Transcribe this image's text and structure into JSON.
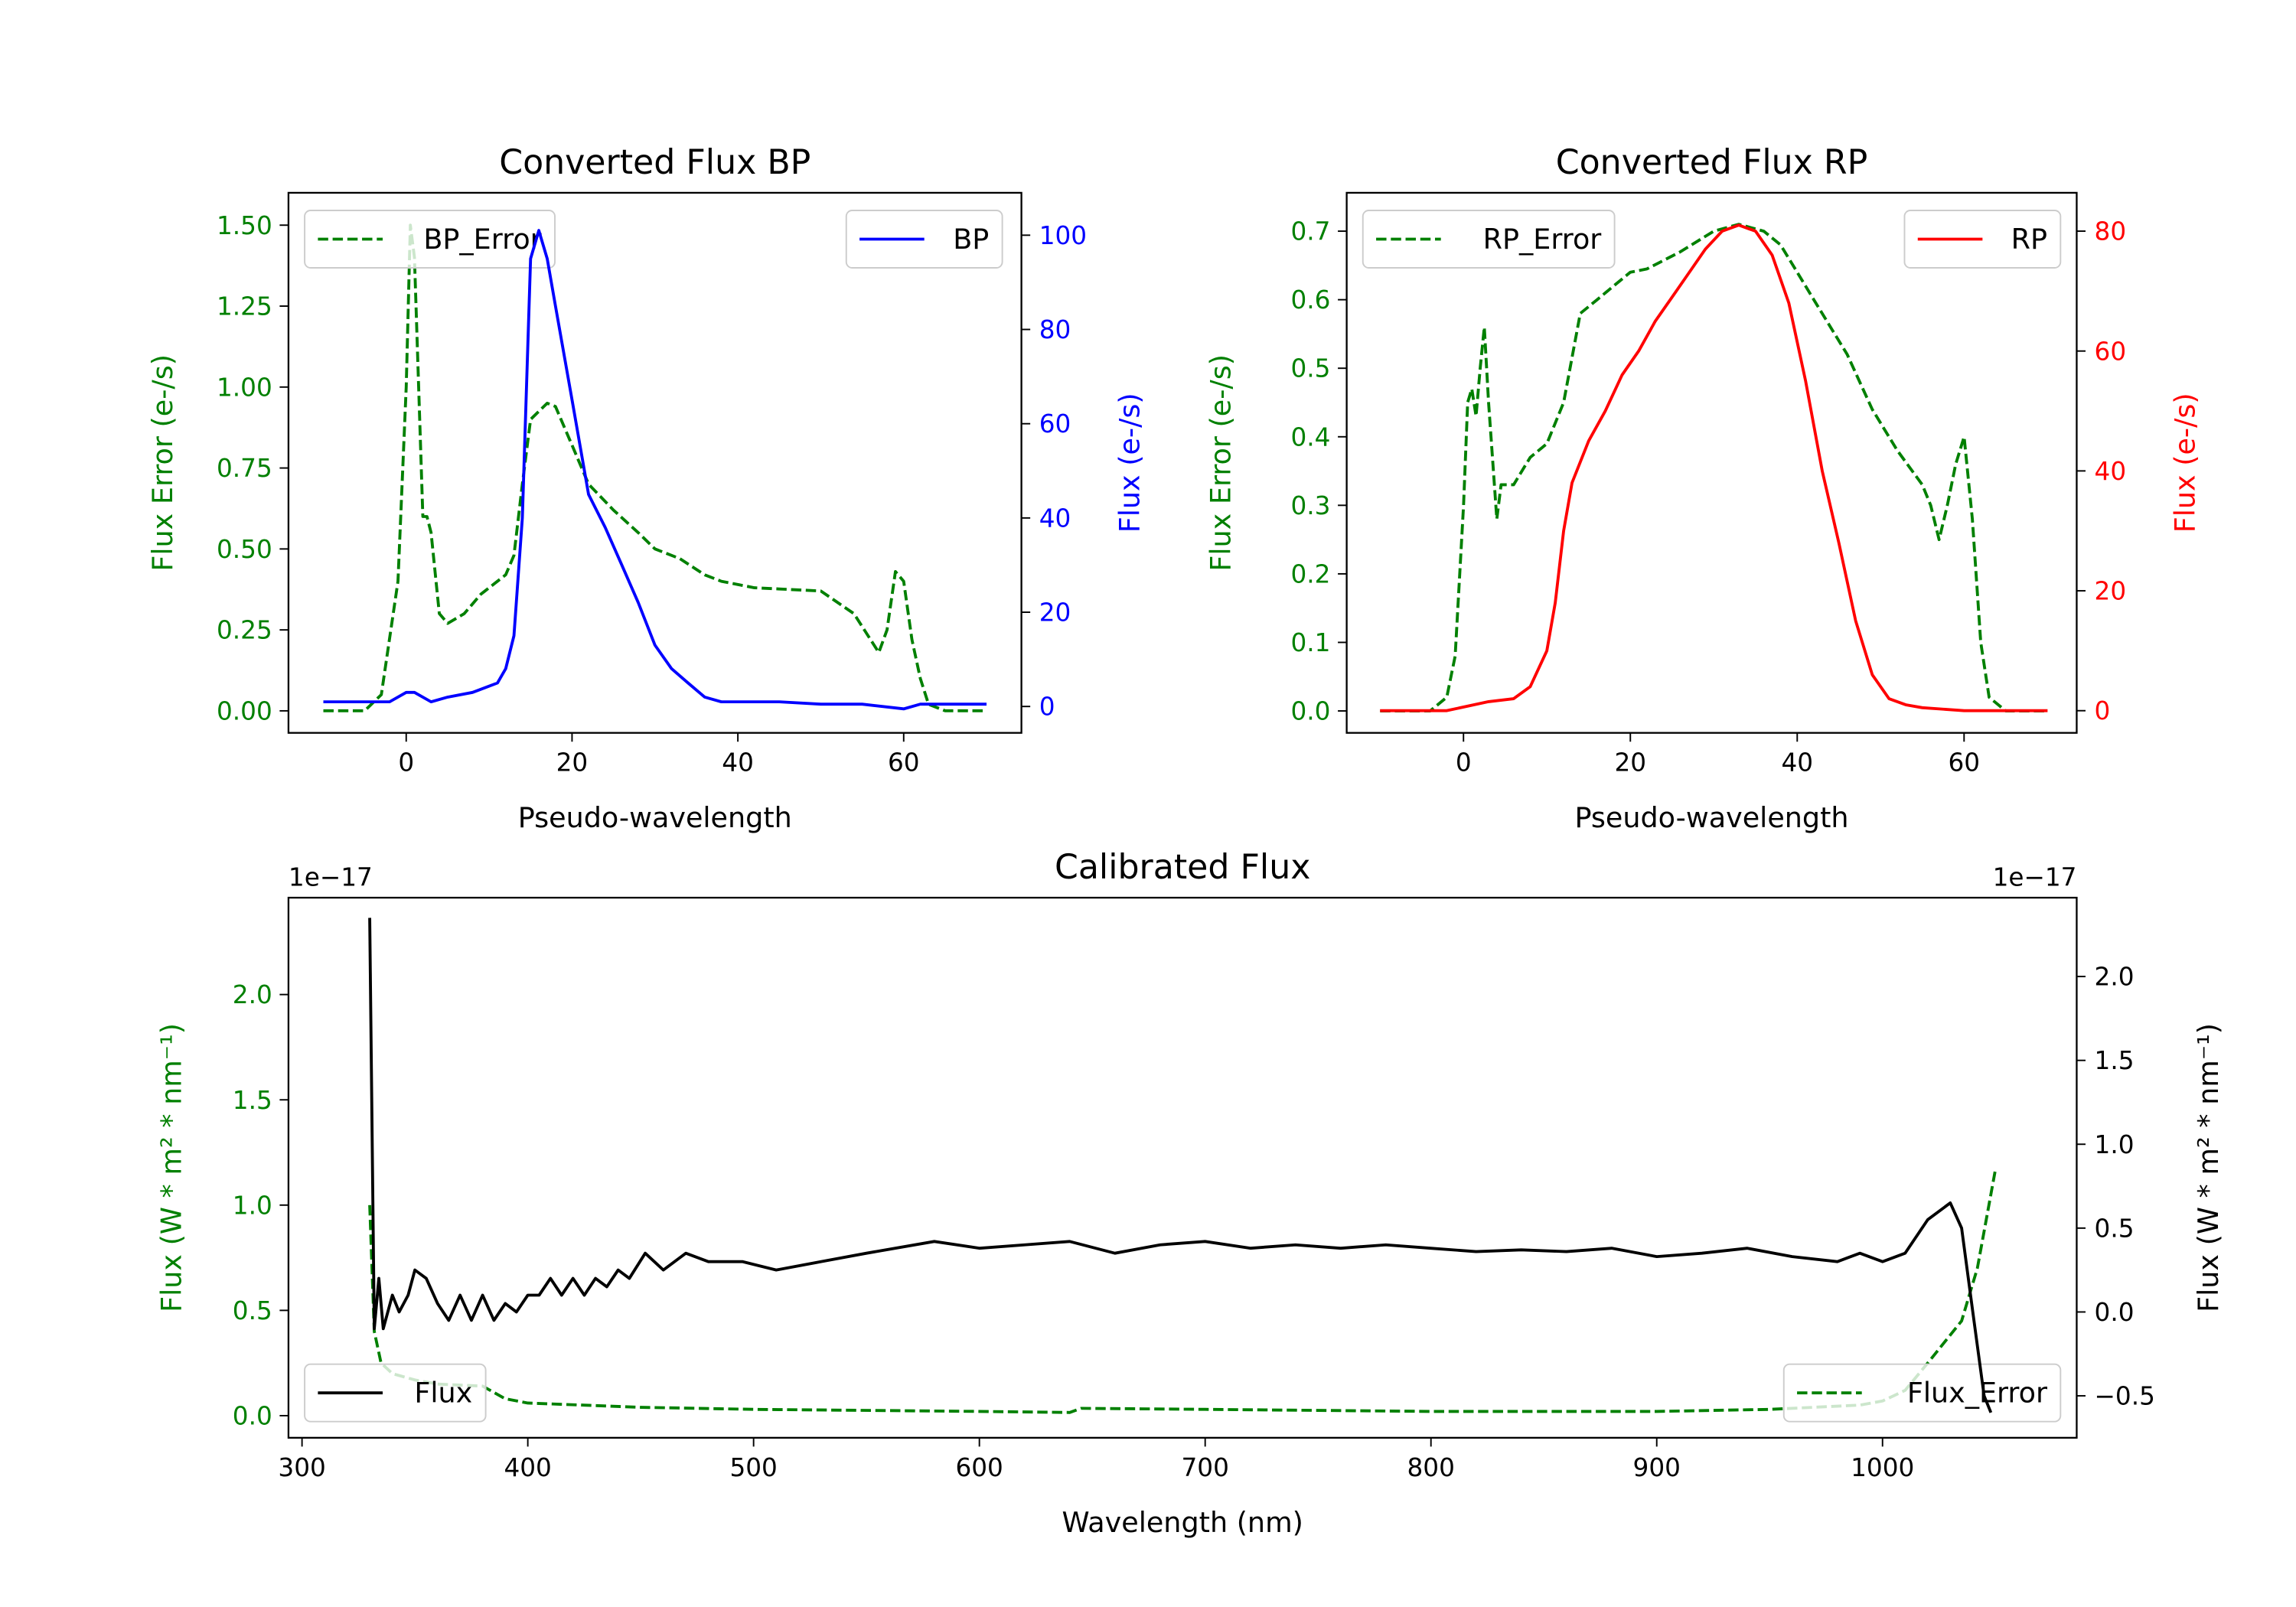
{
  "colors": {
    "error": "#008000",
    "bp": "#0000ff",
    "rp": "#ff0000",
    "flux": "#000000",
    "axis": "#000000"
  },
  "chart_data": [
    {
      "id": "bp",
      "type": "line",
      "title": "Converted Flux BP",
      "xlabel": "Pseudo-wavelength",
      "ylabel_left": "Flux Error (e-/s)",
      "ylabel_right": "Flux (e-/s)",
      "xlim": [
        -14.2,
        74.2
      ],
      "ylim_left": [
        -0.068,
        1.6
      ],
      "ylim_right": [
        -5.6,
        109
      ],
      "xticks": [
        0,
        20,
        40,
        60
      ],
      "xtick_labels": [
        "0",
        "20",
        "40",
        "60"
      ],
      "yticks_left": [
        0,
        0.25,
        0.5,
        0.75,
        1.0,
        1.25,
        1.5
      ],
      "ytick_labels_left": [
        "0.00",
        "0.25",
        "0.50",
        "0.75",
        "1.00",
        "1.25",
        "1.50"
      ],
      "yticks_right": [
        0,
        20,
        40,
        60,
        80,
        100
      ],
      "ytick_labels_right": [
        "0",
        "20",
        "40",
        "60",
        "80",
        "100"
      ],
      "offset_left": "",
      "offset_right": "",
      "left_color": "#008000",
      "right_color": "#0000ff",
      "series_left": {
        "name": "BP_Error",
        "style": "dashed",
        "color": "#008000",
        "legend": "upper left",
        "x": [
          -10,
          -5,
          -3,
          -1,
          0,
          0.5,
          1,
          2,
          2.5,
          3,
          4,
          5,
          7,
          9,
          12,
          13,
          14,
          15,
          17,
          18,
          20,
          22,
          25,
          28,
          30,
          33,
          36,
          38,
          42,
          50,
          54,
          57,
          58,
          59,
          60,
          61,
          62,
          63,
          65,
          70
        ],
        "y": [
          0,
          0,
          0.05,
          0.4,
          1.0,
          1.5,
          1.4,
          0.6,
          0.6,
          0.55,
          0.3,
          0.27,
          0.3,
          0.36,
          0.42,
          0.48,
          0.7,
          0.9,
          0.95,
          0.94,
          0.82,
          0.7,
          0.62,
          0.55,
          0.5,
          0.47,
          0.42,
          0.4,
          0.38,
          0.37,
          0.3,
          0.18,
          0.25,
          0.43,
          0.4,
          0.22,
          0.1,
          0.02,
          0,
          0
        ]
      },
      "series_right": {
        "name": "BP",
        "style": "solid",
        "color": "#0000ff",
        "legend": "upper right",
        "x": [
          -10,
          -2,
          0,
          1,
          3,
          5,
          8,
          11,
          12,
          13,
          14,
          15,
          16,
          17,
          18,
          20,
          22,
          24,
          26,
          28,
          30,
          32,
          34,
          36,
          38,
          45,
          50,
          55,
          60,
          62,
          70
        ],
        "y": [
          1,
          1,
          3,
          3,
          1,
          2,
          3,
          5,
          8,
          15,
          40,
          95,
          101,
          95,
          85,
          65,
          45,
          38,
          30,
          22,
          13,
          8,
          5,
          2,
          1,
          1,
          0.5,
          0.5,
          -0.5,
          0.5,
          0.5
        ]
      }
    },
    {
      "id": "rp",
      "type": "line",
      "title": "Converted Flux RP",
      "xlabel": "Pseudo-wavelength",
      "ylabel_left": "Flux Error (e-/s)",
      "ylabel_right": "Flux (e-/s)",
      "xlim": [
        -14,
        73.5
      ],
      "ylim_left": [
        -0.032,
        0.756
      ],
      "ylim_right": [
        -3.7,
        86.4
      ],
      "xticks": [
        0,
        20,
        40,
        60
      ],
      "xtick_labels": [
        "0",
        "20",
        "40",
        "60"
      ],
      "yticks_left": [
        0,
        0.1,
        0.2,
        0.3,
        0.4,
        0.5,
        0.6,
        0.7
      ],
      "ytick_labels_left": [
        "0.0",
        "0.1",
        "0.2",
        "0.3",
        "0.4",
        "0.5",
        "0.6",
        "0.7"
      ],
      "yticks_right": [
        0,
        20,
        40,
        60,
        80
      ],
      "ytick_labels_right": [
        "0",
        "20",
        "40",
        "60",
        "80"
      ],
      "offset_left": "",
      "offset_right": "",
      "left_color": "#008000",
      "right_color": "#ff0000",
      "series_left": {
        "name": "RP_Error",
        "style": "dashed",
        "color": "#008000",
        "legend": "upper left",
        "x": [
          -10,
          -4,
          -2,
          -1,
          0,
          0.5,
          1,
          1.5,
          2,
          2.5,
          3,
          4,
          4.5,
          6,
          8,
          10,
          12,
          14,
          16,
          18,
          20,
          22,
          26,
          30,
          33,
          36,
          38,
          40,
          42,
          46,
          49,
          52,
          55,
          56,
          57,
          58,
          59,
          60,
          61,
          62,
          63,
          65,
          70
        ],
        "y": [
          0,
          0,
          0.02,
          0.08,
          0.3,
          0.45,
          0.47,
          0.43,
          0.5,
          0.56,
          0.45,
          0.28,
          0.33,
          0.33,
          0.37,
          0.39,
          0.45,
          0.58,
          0.6,
          0.62,
          0.64,
          0.645,
          0.67,
          0.7,
          0.71,
          0.7,
          0.68,
          0.64,
          0.6,
          0.52,
          0.44,
          0.38,
          0.33,
          0.3,
          0.25,
          0.3,
          0.36,
          0.4,
          0.28,
          0.1,
          0.02,
          0,
          0
        ]
      },
      "series_right": {
        "name": "RP",
        "style": "solid",
        "color": "#ff0000",
        "legend": "upper right",
        "x": [
          -10,
          -2,
          3,
          6,
          8,
          10,
          11,
          12,
          13,
          15,
          17,
          19,
          21,
          23,
          25,
          27,
          29,
          31,
          33,
          35,
          37,
          39,
          41,
          43,
          45,
          47,
          49,
          51,
          53,
          55,
          60,
          70
        ],
        "y": [
          0,
          0,
          1.5,
          2,
          4,
          10,
          18,
          30,
          38,
          45,
          50,
          56,
          60,
          65,
          69,
          73,
          77,
          80,
          81,
          80,
          76,
          68,
          55,
          40,
          28,
          15,
          6,
          2,
          1,
          0.5,
          0,
          0
        ]
      }
    },
    {
      "id": "cal",
      "type": "line",
      "title": "Calibrated Flux",
      "xlabel": "Wavelength (nm)",
      "ylabel_left": "Flux (W * m² * nm⁻¹)",
      "ylabel_right": "Flux (W * m² * nm⁻¹)",
      "xlim": [
        294,
        1086
      ],
      "ylim_left": [
        -0.105,
        2.46
      ],
      "ylim_right": [
        -0.75,
        2.47
      ],
      "xticks": [
        300,
        400,
        500,
        600,
        700,
        800,
        900,
        1000
      ],
      "xtick_labels": [
        "300",
        "400",
        "500",
        "600",
        "700",
        "800",
        "900",
        "1000"
      ],
      "yticks_left": [
        0,
        0.5,
        1.0,
        1.5,
        2.0
      ],
      "ytick_labels_left": [
        "0.0",
        "0.5",
        "1.0",
        "1.5",
        "2.0"
      ],
      "yticks_right": [
        -0.5,
        0,
        0.5,
        1.0,
        1.5,
        2.0
      ],
      "ytick_labels_right": [
        "−0.5",
        "0.0",
        "0.5",
        "1.0",
        "1.5",
        "2.0"
      ],
      "offset_left": "1e−17",
      "offset_right": "1e−17",
      "left_color": "#008000",
      "right_color": "#000000",
      "series_left": {
        "name": "Flux_Error",
        "style": "dashed",
        "color": "#008000",
        "legend": "lower right",
        "x": [
          330,
          332,
          335,
          340,
          350,
          360,
          380,
          390,
          400,
          450,
          500,
          600,
          640,
          645,
          700,
          800,
          900,
          950,
          990,
          1000,
          1010,
          1020,
          1035,
          1042,
          1050
        ],
        "y": [
          1.0,
          0.4,
          0.25,
          0.2,
          0.17,
          0.15,
          0.14,
          0.08,
          0.06,
          0.04,
          0.03,
          0.02,
          0.015,
          0.035,
          0.03,
          0.02,
          0.02,
          0.03,
          0.05,
          0.07,
          0.12,
          0.25,
          0.45,
          0.7,
          1.17
        ]
      },
      "series_right": {
        "name": "Flux",
        "style": "solid",
        "color": "#000000",
        "legend": "lower left",
        "x": [
          330,
          332,
          334,
          336,
          340,
          343,
          347,
          350,
          355,
          360,
          365,
          370,
          375,
          380,
          385,
          390,
          395,
          400,
          405,
          410,
          415,
          420,
          425,
          430,
          435,
          440,
          445,
          452,
          460,
          470,
          480,
          495,
          510,
          530,
          550,
          580,
          600,
          620,
          640,
          660,
          680,
          700,
          720,
          740,
          760,
          780,
          800,
          820,
          840,
          860,
          880,
          900,
          920,
          940,
          960,
          980,
          990,
          1000,
          1010,
          1020,
          1030,
          1035,
          1040,
          1045,
          1048
        ],
        "y": [
          2.35,
          -0.1,
          0.2,
          -0.1,
          0.1,
          0.0,
          0.1,
          0.25,
          0.2,
          0.05,
          -0.05,
          0.1,
          -0.05,
          0.1,
          -0.05,
          0.05,
          0.0,
          0.1,
          0.1,
          0.2,
          0.1,
          0.2,
          0.1,
          0.2,
          0.15,
          0.25,
          0.2,
          0.35,
          0.25,
          0.35,
          0.3,
          0.3,
          0.25,
          0.3,
          0.35,
          0.42,
          0.38,
          0.4,
          0.42,
          0.35,
          0.4,
          0.42,
          0.38,
          0.4,
          0.38,
          0.4,
          0.38,
          0.36,
          0.37,
          0.36,
          0.38,
          0.33,
          0.35,
          0.38,
          0.33,
          0.3,
          0.35,
          0.3,
          0.35,
          0.55,
          0.65,
          0.5,
          0.0,
          -0.5,
          -0.6
        ]
      }
    }
  ]
}
